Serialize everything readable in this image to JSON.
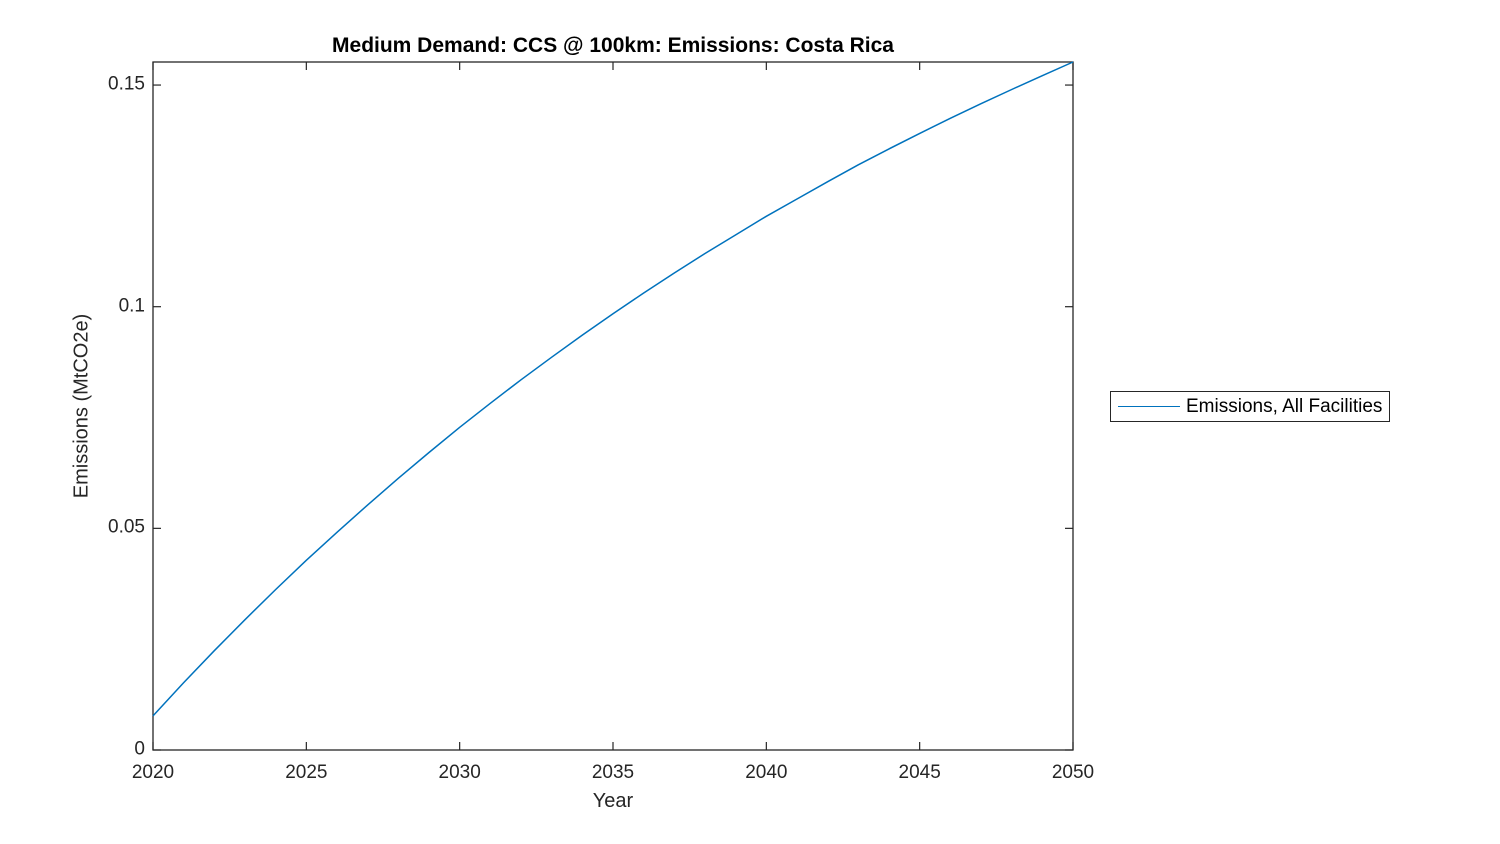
{
  "window": {
    "background": "#ffffff"
  },
  "figure": {
    "title": "Medium Demand: CCS @ 100km: Emissions: Costa Rica",
    "xlabel": "Year",
    "ylabel": "Emissions (MtCO2e)",
    "axis_color": "#262626",
    "title_color": "#000000",
    "line_color": "#0072BD"
  },
  "legend": {
    "entries": [
      {
        "label": "Emissions, All Facilities",
        "color": "#0072BD"
      }
    ]
  },
  "chart_data": {
    "type": "line",
    "title": "Medium Demand: CCS @ 100km: Emissions: Costa Rica",
    "xlabel": "Year",
    "ylabel": "Emissions (MtCO2e)",
    "xlim": [
      2020,
      2050
    ],
    "ylim": [
      0,
      0.1552
    ],
    "x_ticks": [
      2020,
      2025,
      2030,
      2035,
      2040,
      2045,
      2050
    ],
    "x_tick_labels": [
      "2020",
      "2025",
      "2030",
      "2035",
      "2040",
      "2045",
      "2050"
    ],
    "y_ticks": [
      0,
      0.05,
      0.1,
      0.15
    ],
    "y_tick_labels": [
      "0",
      "0.05",
      "0.1",
      "0.15"
    ],
    "grid": false,
    "box": true,
    "tick_direction": "in",
    "legend_position": "outside-right",
    "series": [
      {
        "name": "Emissions, All Facilities",
        "color": "#0072BD",
        "x": [
          2020,
          2021,
          2022,
          2023,
          2024,
          2025,
          2026,
          2027,
          2028,
          2029,
          2030,
          2031,
          2032,
          2033,
          2034,
          2035,
          2036,
          2037,
          2038,
          2039,
          2040,
          2041,
          2042,
          2043,
          2044,
          2045,
          2046,
          2047,
          2048,
          2049,
          2050
        ],
        "y": [
          0.0077,
          0.0152,
          0.0224,
          0.0294,
          0.0362,
          0.0428,
          0.0491,
          0.0553,
          0.0613,
          0.0671,
          0.0728,
          0.0782,
          0.0835,
          0.0886,
          0.0936,
          0.0984,
          0.1031,
          0.1076,
          0.112,
          0.1162,
          0.1204,
          0.1243,
          0.1282,
          0.132,
          0.1356,
          0.1391,
          0.1425,
          0.1458,
          0.149,
          0.1521,
          0.1552
        ]
      }
    ]
  }
}
